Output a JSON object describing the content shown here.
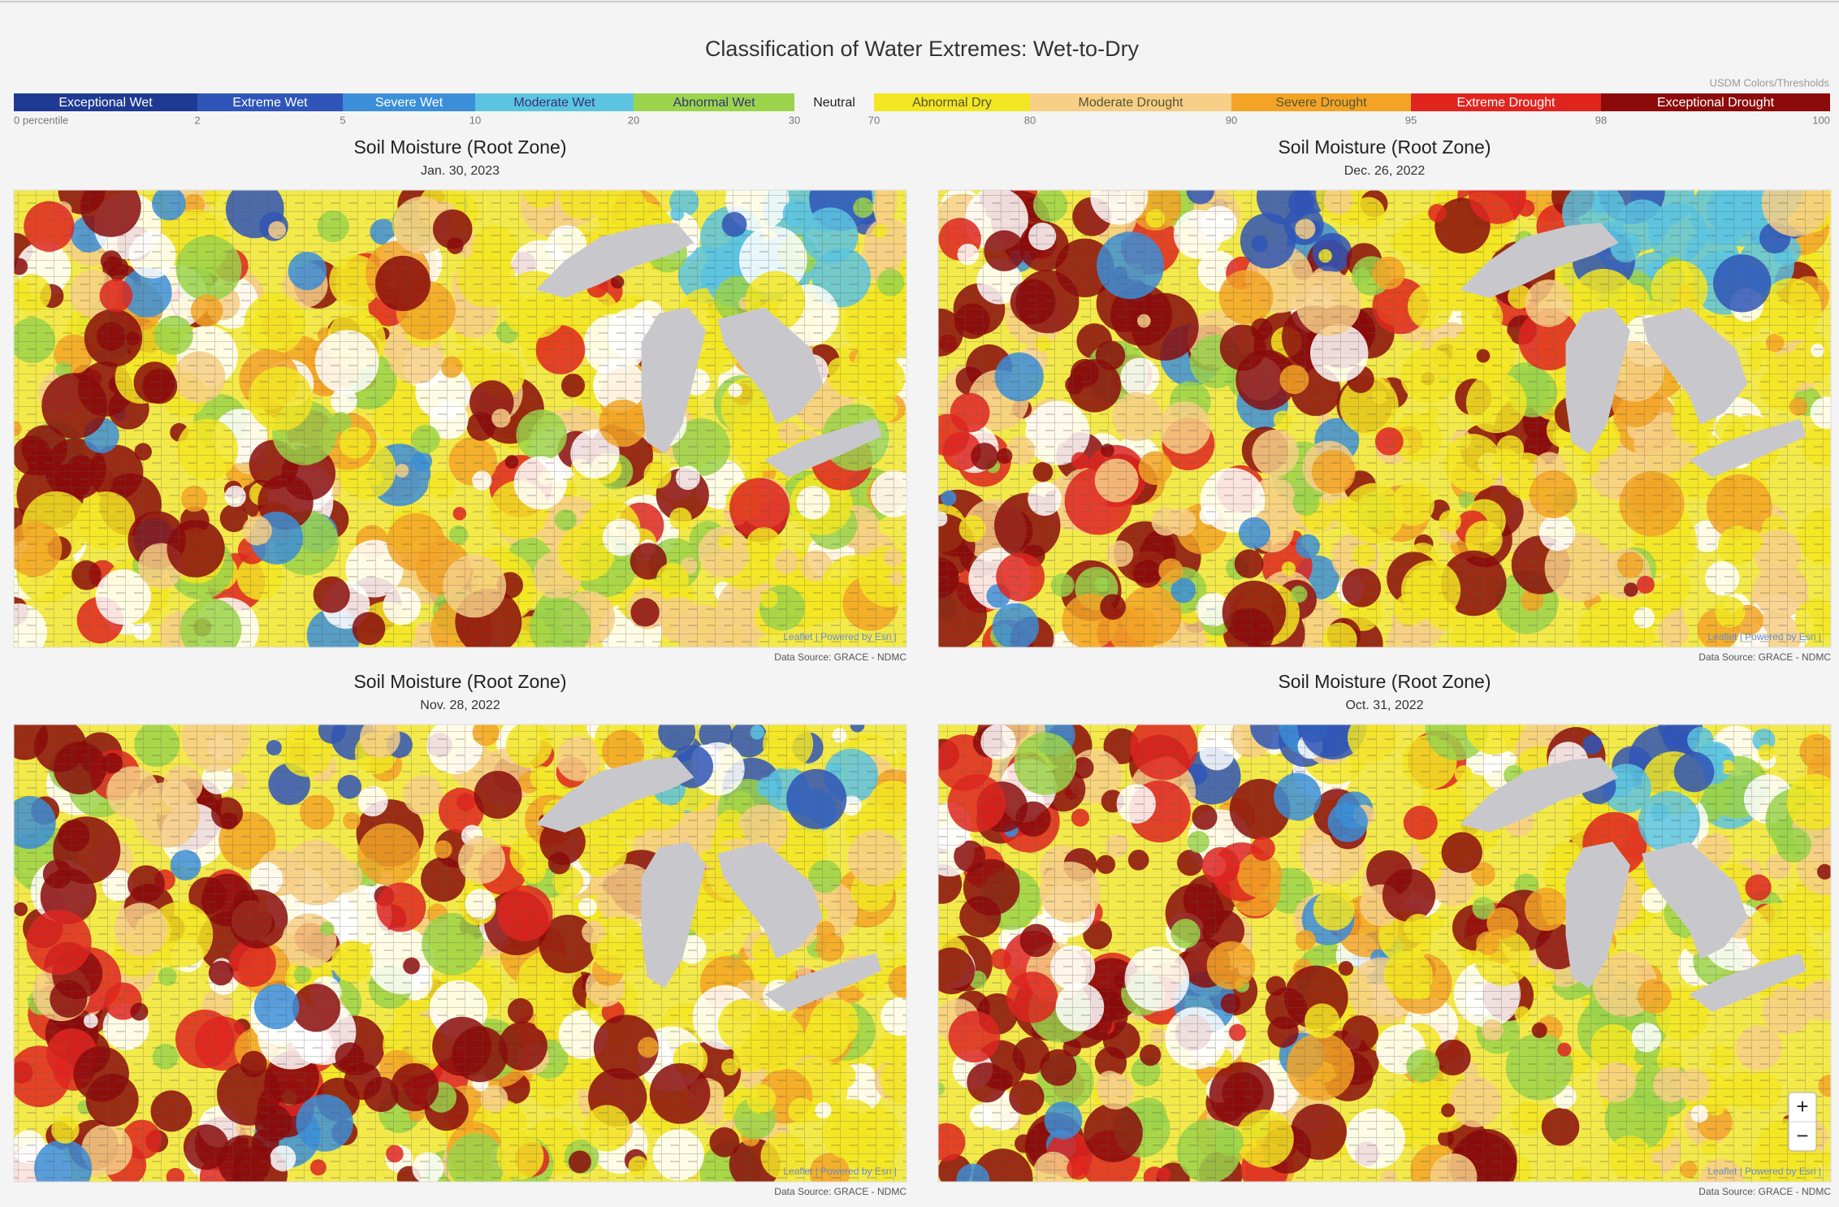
{
  "header": {
    "title": "Classification of Water Extremes: Wet-to-Dry",
    "note": "USDM Colors/Thresholds"
  },
  "legend": {
    "items": [
      {
        "label": "Exceptional Wet",
        "color": "#1f3a93"
      },
      {
        "label": "Extreme Wet",
        "color": "#2f55b8"
      },
      {
        "label": "Severe Wet",
        "color": "#3b8fd9"
      },
      {
        "label": "Moderate Wet",
        "color": "#5cc4e0"
      },
      {
        "label": "Abnormal Wet",
        "color": "#9bd44a"
      },
      {
        "label": "Neutral",
        "color": "#f4f4f4"
      },
      {
        "label": "Abnormal Dry",
        "color": "#f3e622"
      },
      {
        "label": "Moderate Drought",
        "color": "#f7cf86"
      },
      {
        "label": "Severe Drought",
        "color": "#f3a426"
      },
      {
        "label": "Extreme Drought",
        "color": "#e0241e"
      },
      {
        "label": "Exceptional Drought",
        "color": "#8b0b0b"
      }
    ],
    "ticks": [
      "0 percentile",
      "2",
      "5",
      "10",
      "20",
      "30",
      "70",
      "80",
      "90",
      "95",
      "98",
      "100"
    ]
  },
  "panels": [
    {
      "title": "Soil Moisture (Root Zone)",
      "date": "Jan. 30, 2023"
    },
    {
      "title": "Soil Moisture (Root Zone)",
      "date": "Dec. 26, 2022"
    },
    {
      "title": "Soil Moisture (Root Zone)",
      "date": "Nov. 28, 2022"
    },
    {
      "title": "Soil Moisture (Root Zone)",
      "date": "Oct. 31, 2022"
    }
  ],
  "attribution": "Leaflet | Powered by Esri |",
  "source": "Data Source: GRACE - NDMC",
  "zoom": {
    "in": "+",
    "out": "−"
  }
}
